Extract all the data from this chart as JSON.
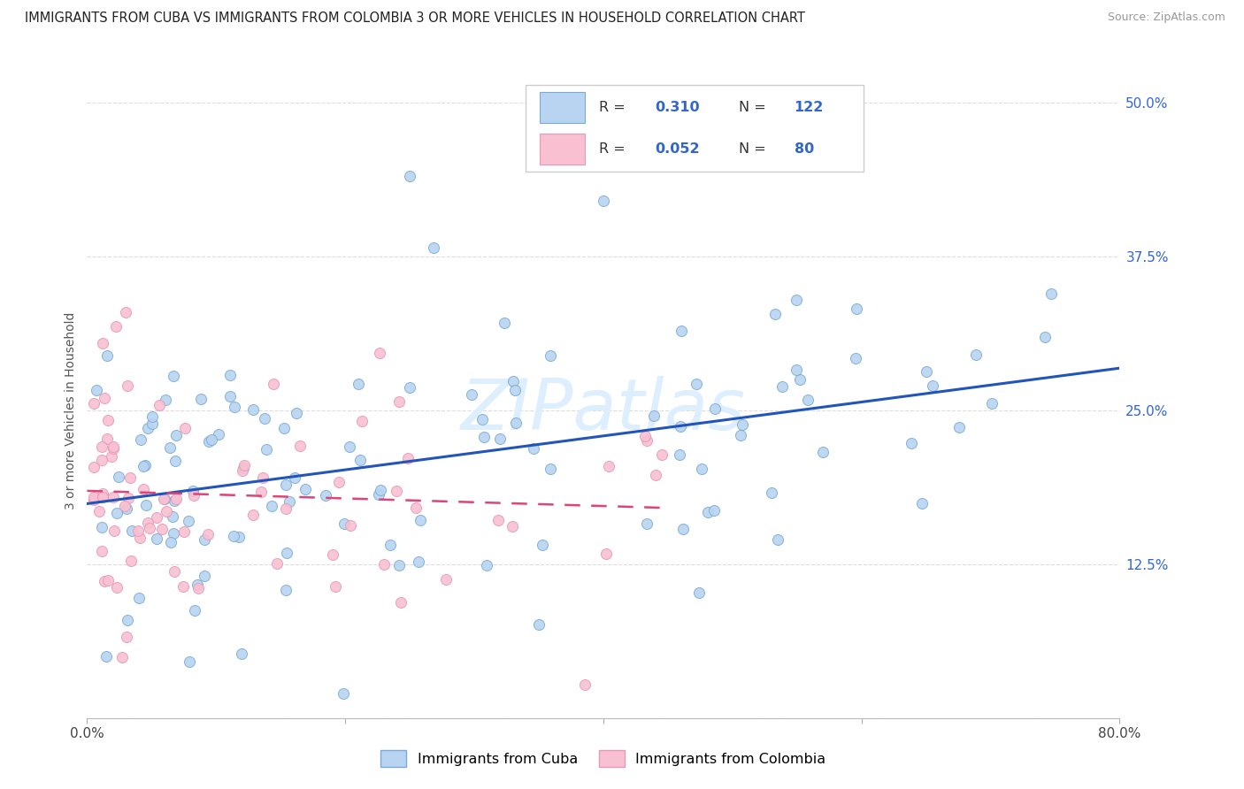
{
  "title": "IMMIGRANTS FROM CUBA VS IMMIGRANTS FROM COLOMBIA 3 OR MORE VEHICLES IN HOUSEHOLD CORRELATION CHART",
  "source": "Source: ZipAtlas.com",
  "ylabel_left": "3 or more Vehicles in Household",
  "cuba_color": "#b8d4f0",
  "cuba_edge_color": "#7aaad8",
  "colombia_color": "#f8c0d0",
  "colombia_edge_color": "#e898b8",
  "cuba_line_color": "#2255bb",
  "colombia_line_color": "#dd4477",
  "grid_color": "#dddddd",
  "watermark": "ZIPatlas",
  "watermark_color": "#ddeeff",
  "xlim": [
    0.0,
    0.8
  ],
  "ylim": [
    0.0,
    0.5
  ],
  "yticks": [
    0.0,
    0.125,
    0.25,
    0.375,
    0.5
  ],
  "yticklabels": [
    "",
    "12.5%",
    "25.0%",
    "37.5%",
    "50.0%"
  ],
  "xtick_left": "0.0%",
  "xtick_right": "80.0%",
  "legend_R_cuba": "0.310",
  "legend_N_cuba": "122",
  "legend_R_colombia": "0.052",
  "legend_N_colombia": "80",
  "legend_label_cuba": "Immigrants from Cuba",
  "legend_label_colombia": "Immigrants from Colombia",
  "title_fontsize": 10.5,
  "source_fontsize": 9,
  "tick_fontsize": 11,
  "ylabel_fontsize": 10
}
